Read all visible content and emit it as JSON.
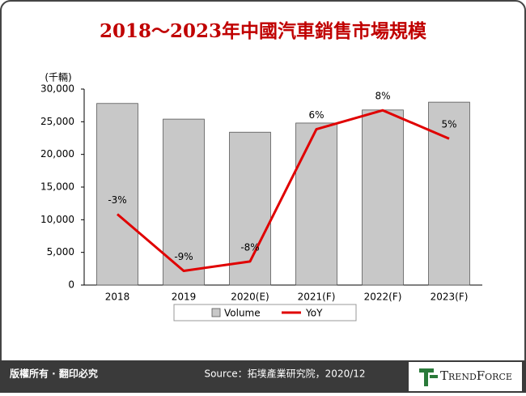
{
  "chart_data": {
    "type": "bar",
    "title": "2018～2023年中國汽車銷售市場規模",
    "y_unit": "(千輛)",
    "categories": [
      "2018",
      "2019",
      "2020(E)",
      "2021(F)",
      "2022(F)",
      "2023(F)"
    ],
    "series": [
      {
        "name": "Volume",
        "type": "bar",
        "color": "#c8c8c8",
        "values": [
          27800,
          25400,
          23400,
          24800,
          26800,
          28000
        ]
      },
      {
        "name": "YoY",
        "type": "line",
        "axis": "y2",
        "color": "#e00000",
        "values": [
          -3,
          -9,
          -8,
          6,
          8,
          5
        ],
        "value_labels": [
          "-3%",
          "-9%",
          "-8%",
          "6%",
          "8%",
          "5%"
        ]
      }
    ],
    "ylim": [
      0,
      30000
    ],
    "yticks": [
      0,
      {
        "value": 5000,
        "label": "5,000"
      },
      {
        "value": 10000,
        "label": "10,000"
      },
      {
        "value": 15000,
        "label": "15,000"
      },
      {
        "value": 20000,
        "label": "20,000"
      },
      {
        "value": 25000,
        "label": "25,000"
      },
      {
        "value": 30000,
        "label": "30,000"
      }
    ],
    "y2lim": [
      -10.5,
      10.25
    ],
    "grid": false,
    "legend": "bottom"
  },
  "footer": {
    "copyright": "版權所有 · 翻印必究",
    "source": "Source：拓墣產業研究院，2020/12",
    "logo": "TrendForce"
  }
}
